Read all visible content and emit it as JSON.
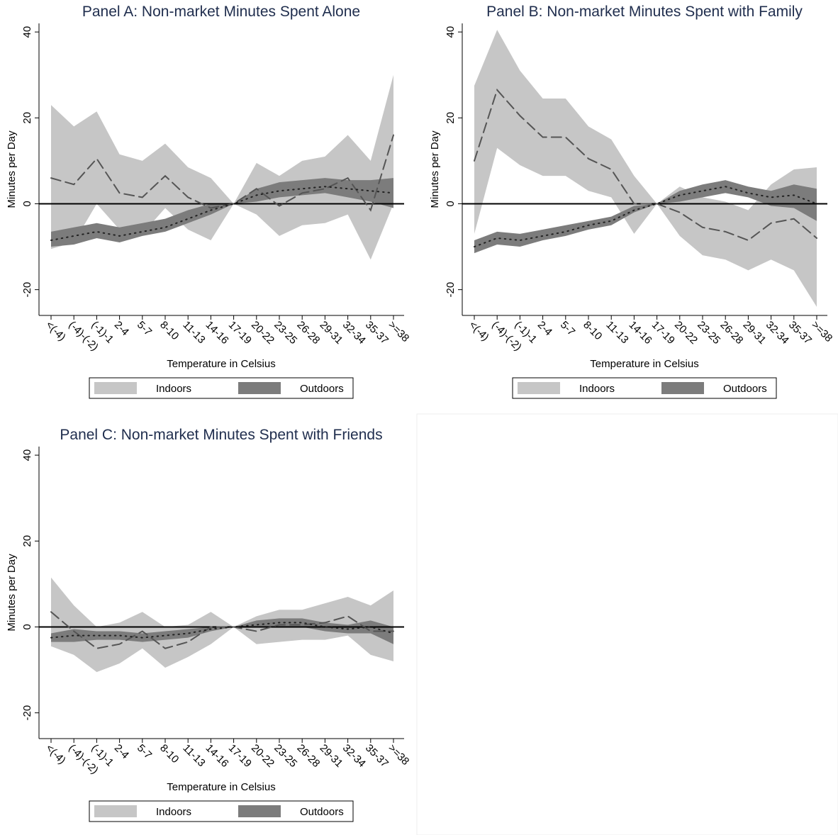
{
  "chart_data": [
    {
      "type": "line",
      "title": "Panel A: Non-market Minutes Spent Alone",
      "xlabel": "Temperature in Celsius",
      "ylabel": "Minutes per Day",
      "categories": [
        "<(-4)",
        "(-4)-(-2)",
        "(-1)-1",
        "2-4",
        "5-7",
        "8-10",
        "11-13",
        "14-16",
        "17-19",
        "20-22",
        "23-25",
        "26-28",
        "29-31",
        "32-34",
        "35-37",
        ">=38"
      ],
      "ylim": [
        -26,
        42
      ],
      "yticks": [
        -20,
        0,
        20,
        40
      ],
      "series": [
        {
          "name": "Indoors",
          "color": "#c6c6c6",
          "line_color": "#555555",
          "line_style": "dash",
          "values": [
            6,
            4.5,
            10.5,
            2.5,
            1.5,
            6.5,
            1.5,
            -1,
            0,
            3.5,
            -0.5,
            2.5,
            3.5,
            6,
            -1.5,
            16
          ],
          "lower": [
            -10.5,
            -9,
            0,
            -6,
            -7,
            -1,
            -6,
            -8.5,
            0,
            -2.5,
            -7.5,
            -5,
            -4.5,
            -2.5,
            -13,
            0
          ],
          "upper": [
            23,
            18,
            21.5,
            11.5,
            10,
            14,
            8.5,
            6,
            0,
            9.5,
            6.5,
            10,
            11,
            16,
            10,
            30
          ]
        },
        {
          "name": "Outdoors",
          "color": "#7c7c7c",
          "line_color": "#222222",
          "line_style": "dot",
          "values": [
            -8.5,
            -7.5,
            -6.5,
            -7.5,
            -6.5,
            -5.5,
            -3.5,
            -1.5,
            0,
            2,
            3,
            3.5,
            4,
            3.5,
            3,
            2.5
          ],
          "lower": [
            -10,
            -9.5,
            -8,
            -9,
            -7.5,
            -6.5,
            -4.5,
            -2.5,
            0,
            0.5,
            1.5,
            2,
            2.5,
            1.5,
            0.5,
            -1
          ],
          "upper": [
            -6.5,
            -5.5,
            -4.5,
            -5.5,
            -4.5,
            -3.5,
            -1.5,
            0,
            0,
            3.5,
            5,
            5.5,
            6,
            5.5,
            5.5,
            6
          ]
        }
      ]
    },
    {
      "type": "line",
      "title": "Panel B: Non-market Minutes Spent with Family",
      "xlabel": "Temperature in Celsius",
      "ylabel": "Minutes per Day",
      "categories": [
        "<(-4)",
        "(-4)-(-2)",
        "(-1)-1",
        "2-4",
        "5-7",
        "8-10",
        "11-13",
        "14-16",
        "17-19",
        "20-22",
        "23-25",
        "26-28",
        "29-31",
        "32-34",
        "35-37",
        ">=38"
      ],
      "ylim": [
        -26,
        42
      ],
      "yticks": [
        -20,
        0,
        20,
        40
      ],
      "series": [
        {
          "name": "Indoors",
          "color": "#c6c6c6",
          "line_color": "#555555",
          "line_style": "dash",
          "values": [
            10,
            26.5,
            20.5,
            15.5,
            15.5,
            10.5,
            8,
            0,
            0,
            -2,
            -5.5,
            -6.5,
            -8.5,
            -4.5,
            -3.5,
            -8
          ],
          "lower": [
            -7,
            13,
            9,
            6.5,
            6.5,
            3,
            1.5,
            -7,
            0,
            -7.5,
            -12,
            -13,
            -15.5,
            -13,
            -15.5,
            -24
          ],
          "upper": [
            27.5,
            40.5,
            31,
            24.5,
            24.5,
            18,
            15,
            6.5,
            0,
            4,
            1.5,
            0.5,
            -1.5,
            4.5,
            8,
            8.5
          ]
        },
        {
          "name": "Outdoors",
          "color": "#7c7c7c",
          "line_color": "#222222",
          "line_style": "dot",
          "values": [
            -10,
            -8,
            -8.5,
            -7.5,
            -6.5,
            -5,
            -4,
            -1.5,
            0,
            2,
            3,
            4,
            2.5,
            1.5,
            2,
            0
          ],
          "lower": [
            -11.5,
            -9.5,
            -10,
            -8.5,
            -7.5,
            -6,
            -5,
            -2,
            0,
            0.5,
            1.5,
            2.5,
            1.5,
            -0.5,
            -1,
            -4
          ],
          "upper": [
            -8.5,
            -6.5,
            -7,
            -6,
            -5,
            -4,
            -3,
            -0.5,
            0,
            3,
            4.5,
            5.5,
            4,
            3,
            4.5,
            3.5
          ]
        }
      ]
    },
    {
      "type": "line",
      "title": "Panel C: Non-market Minutes Spent with Friends",
      "xlabel": "Temperature in Celsius",
      "ylabel": "Minutes per Day",
      "categories": [
        "<(-4)",
        "(-4)-(-2)",
        "(-1)-1",
        "2-4",
        "5-7",
        "8-10",
        "11-13",
        "14-16",
        "17-19",
        "20-22",
        "23-25",
        "26-28",
        "29-31",
        "32-34",
        "35-37",
        ">=38"
      ],
      "ylim": [
        -26,
        42
      ],
      "yticks": [
        -20,
        0,
        20,
        40
      ],
      "series": [
        {
          "name": "Indoors",
          "color": "#c6c6c6",
          "line_color": "#555555",
          "line_style": "dash",
          "values": [
            3.5,
            -1,
            -5,
            -4,
            -1,
            -5,
            -3.5,
            0,
            0,
            -1,
            0.5,
            0.5,
            1,
            2.5,
            -1,
            -1
          ],
          "lower": [
            -4.5,
            -6.5,
            -10.5,
            -8.5,
            -5,
            -9.5,
            -7,
            -4,
            0,
            -4,
            -3.5,
            -3,
            -3,
            -2,
            -6.5,
            -8
          ],
          "upper": [
            11.5,
            5,
            0,
            1,
            3.5,
            0,
            0.5,
            3.5,
            0,
            2.5,
            4,
            4,
            5.5,
            7,
            5,
            8.5
          ]
        },
        {
          "name": "Outdoors",
          "color": "#7c7c7c",
          "line_color": "#222222",
          "line_style": "dot",
          "values": [
            -2.5,
            -2,
            -2,
            -2,
            -2.5,
            -2,
            -1.5,
            -0.5,
            0,
            0.5,
            1,
            1,
            0,
            -0.5,
            0,
            -1.5
          ],
          "lower": [
            -3.5,
            -3.5,
            -3,
            -3,
            -3.5,
            -3,
            -2.5,
            -1,
            0,
            0,
            0,
            0,
            -1,
            -1.5,
            -1.5,
            -4
          ],
          "upper": [
            -1.5,
            -0.5,
            -1,
            -1,
            -1.5,
            -1,
            -0.5,
            0,
            0,
            1.5,
            2,
            2,
            1,
            0.5,
            1.5,
            0
          ]
        }
      ]
    }
  ]
}
